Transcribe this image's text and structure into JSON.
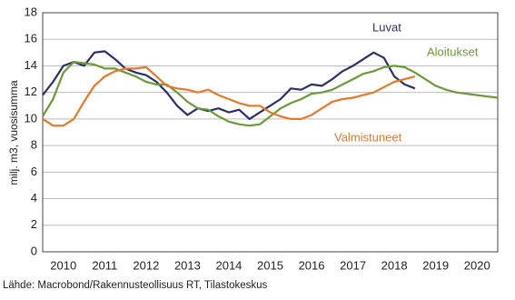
{
  "chart_data": {
    "type": "line",
    "y_label": "milj. m3, vuosisumma",
    "source": "Lähde: Macrobond/Rakennusteollisuus RT, Tilastokeskus",
    "x": [
      2010,
      2010.25,
      2010.5,
      2010.75,
      2011,
      2011.25,
      2011.5,
      2011.75,
      2012,
      2012.25,
      2012.5,
      2012.75,
      2013,
      2013.25,
      2013.5,
      2013.75,
      2014,
      2014.25,
      2014.5,
      2014.75,
      2015,
      2015.25,
      2015.5,
      2015.75,
      2016,
      2016.25,
      2016.5,
      2016.75,
      2017,
      2017.25,
      2017.5,
      2017.75,
      2018,
      2018.25,
      2018.5,
      2018.75,
      2019,
      2019.25,
      2019.5,
      2019.75,
      2020,
      2020.25,
      2020.5,
      2020.75,
      2021
    ],
    "series": [
      {
        "name": "Luvat",
        "color": "#2b2f6e",
        "values": [
          11.8,
          12.8,
          14.0,
          14.3,
          14.0,
          15.0,
          15.1,
          14.5,
          13.8,
          13.5,
          13.3,
          12.8,
          12.0,
          11.0,
          10.3,
          10.8,
          10.6,
          10.8,
          10.5,
          10.7,
          10.0,
          10.5,
          11.0,
          11.5,
          12.3,
          12.2,
          12.6,
          12.5,
          13.0,
          13.6,
          14.0,
          14.5,
          15.0,
          14.6,
          13.2,
          12.6,
          12.3,
          null,
          null,
          null,
          null,
          null,
          null,
          null,
          null
        ]
      },
      {
        "name": "Aloitukset",
        "color": "#6b9a3a",
        "values": [
          10.2,
          11.5,
          13.5,
          14.3,
          14.2,
          14.1,
          13.8,
          13.8,
          13.5,
          13.2,
          12.8,
          12.6,
          12.6,
          12.0,
          11.3,
          10.8,
          10.7,
          10.2,
          9.8,
          9.6,
          9.5,
          9.6,
          10.2,
          10.8,
          11.2,
          11.5,
          11.9,
          12.0,
          12.2,
          12.6,
          13.0,
          13.4,
          13.6,
          13.9,
          14.0,
          13.9,
          13.5,
          13.0,
          12.5,
          12.2,
          12.0,
          11.9,
          11.8,
          11.7,
          11.6
        ]
      },
      {
        "name": "Valmistuneet",
        "color": "#e8782a",
        "values": [
          10.0,
          9.5,
          9.5,
          10.0,
          11.3,
          12.5,
          13.2,
          13.6,
          13.8,
          13.8,
          13.9,
          13.2,
          12.5,
          12.3,
          12.2,
          12.0,
          12.2,
          11.8,
          11.5,
          11.2,
          11.0,
          11.0,
          10.5,
          10.2,
          10.0,
          10.0,
          10.3,
          10.8,
          11.3,
          11.5,
          11.6,
          11.8,
          12.0,
          12.4,
          12.8,
          13.0,
          13.2,
          null,
          null,
          null,
          null,
          null,
          null,
          null,
          null
        ]
      }
    ],
    "xlim": [
      2010,
      2021
    ],
    "xticks": [
      {
        "value": 2010.5,
        "label": "2010"
      },
      {
        "value": 2011.5,
        "label": "2011"
      },
      {
        "value": 2012.5,
        "label": "2012"
      },
      {
        "value": 2013.5,
        "label": "2013"
      },
      {
        "value": 2014.5,
        "label": "2014"
      },
      {
        "value": 2015.5,
        "label": "2015"
      },
      {
        "value": 2016.5,
        "label": "2016"
      },
      {
        "value": 2017.5,
        "label": "2017"
      },
      {
        "value": 2018.5,
        "label": "2018"
      },
      {
        "value": 2019.5,
        "label": "2019"
      },
      {
        "value": 2020.5,
        "label": "2020"
      }
    ],
    "ylim": [
      0,
      18
    ],
    "yticks": [
      0,
      2,
      4,
      6,
      8,
      10,
      12,
      14,
      16,
      18
    ],
    "grid": true
  }
}
